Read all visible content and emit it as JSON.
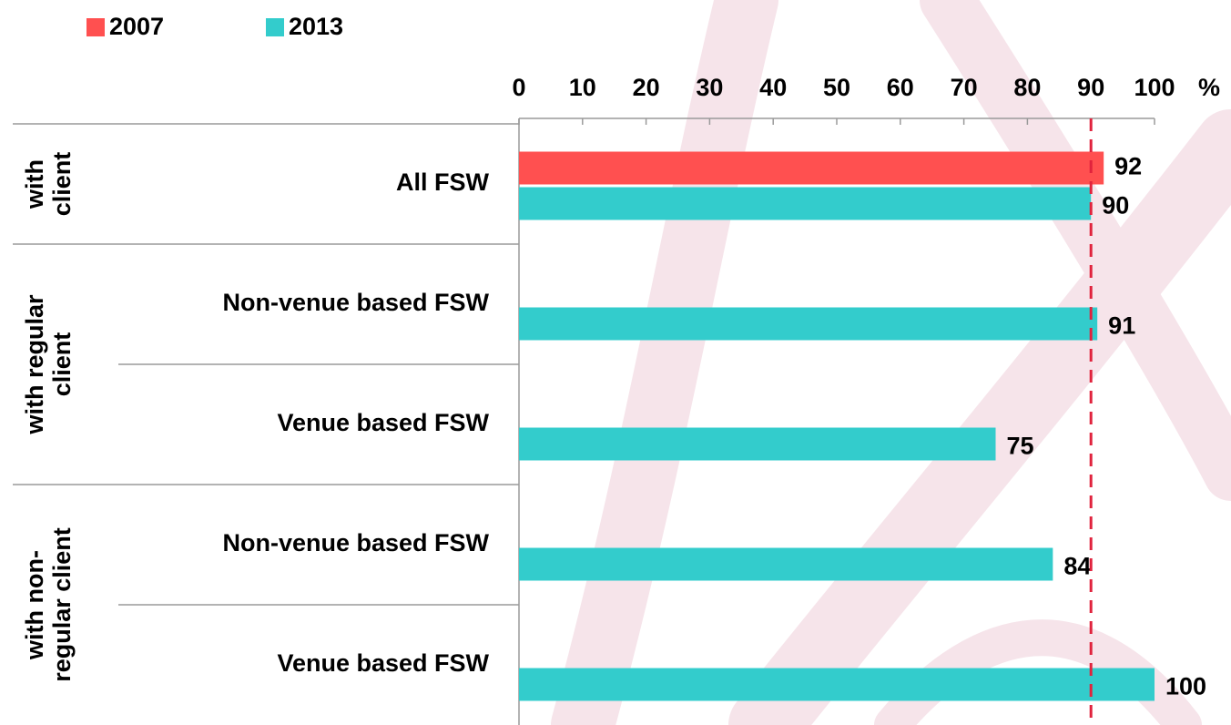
{
  "chart_data": {
    "type": "bar",
    "orientation": "horizontal",
    "categories": [
      "All FSW",
      "Non-venue based FSW",
      "Venue based FSW",
      "Non-venue based FSW",
      "Venue based FSW"
    ],
    "category_groups": [
      {
        "label": [
          "with",
          "client"
        ],
        "size": 1
      },
      {
        "label": [
          "with regular",
          "client"
        ],
        "size": 2
      },
      {
        "label": [
          "with non-",
          "regular client"
        ],
        "size": 2
      }
    ],
    "series": [
      {
        "name": "2007",
        "color": "#ff5050",
        "values": [
          92,
          null,
          null,
          null,
          null
        ]
      },
      {
        "name": "2013",
        "color": "#33cccc",
        "values": [
          90,
          91,
          75,
          84,
          100
        ]
      }
    ],
    "xlim": [
      0,
      100
    ],
    "xticks": [
      0,
      10,
      20,
      30,
      40,
      50,
      60,
      70,
      80,
      90,
      100
    ],
    "x_unit": "%",
    "reference_line": {
      "value": 90,
      "color": "#e0233d"
    },
    "legend": "top-left"
  }
}
